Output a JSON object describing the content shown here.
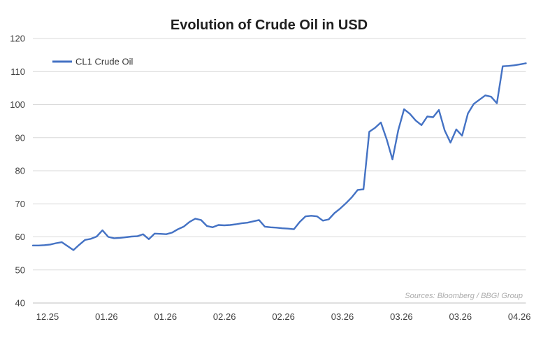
{
  "chart": {
    "title": "Evolution of Crude Oil in USD",
    "source_note": "Sources: Bloomberg / BBGI Group"
  },
  "chart_data": {
    "type": "line",
    "title": "Evolution of Crude Oil in USD",
    "xlabel": "",
    "ylabel": "",
    "ylim": [
      40,
      120
    ],
    "y_ticks": [
      120,
      110,
      100,
      90,
      80,
      70,
      60,
      50,
      40
    ],
    "x_tick_labels": [
      "12.25",
      "01.26",
      "01.26",
      "02.26",
      "02.26",
      "03.26",
      "03.26",
      "03.26",
      "04.26"
    ],
    "grid": "horizontal",
    "gridline_color": "#d9d9d9",
    "axis_line_color": "#bfbfbf",
    "legend_position": "top-left-inside",
    "source_note": "Sources: Bloomberg / BBGI Group",
    "series": [
      {
        "name": "CL1 Crude Oil",
        "color": "#4472C4",
        "values": [
          57.4,
          57.4,
          57.5,
          57.7,
          58.1,
          58.4,
          57.2,
          56.0,
          57.6,
          59.1,
          59.4,
          60.1,
          62.0,
          60.0,
          59.6,
          59.7,
          59.9,
          60.1,
          60.2,
          60.8,
          59.3,
          61.0,
          60.9,
          60.8,
          61.3,
          62.3,
          63.1,
          64.5,
          65.5,
          65.1,
          63.3,
          62.9,
          63.6,
          63.5,
          63.6,
          63.8,
          64.1,
          64.3,
          64.7,
          65.1,
          63.1,
          62.9,
          62.8,
          62.6,
          62.5,
          62.3,
          64.5,
          66.2,
          66.4,
          66.2,
          64.9,
          65.3,
          67.2,
          68.6,
          70.2,
          72.0,
          74.2,
          74.4,
          91.8,
          93.0,
          94.6,
          89.5,
          83.4,
          92.3,
          98.6,
          97.2,
          95.2,
          93.8,
          96.4,
          96.2,
          98.4,
          92.2,
          88.5,
          92.5,
          90.6,
          97.3,
          100.2,
          101.5,
          102.8,
          102.4,
          100.4,
          111.6,
          111.7,
          111.9,
          112.2,
          112.5
        ]
      }
    ]
  }
}
